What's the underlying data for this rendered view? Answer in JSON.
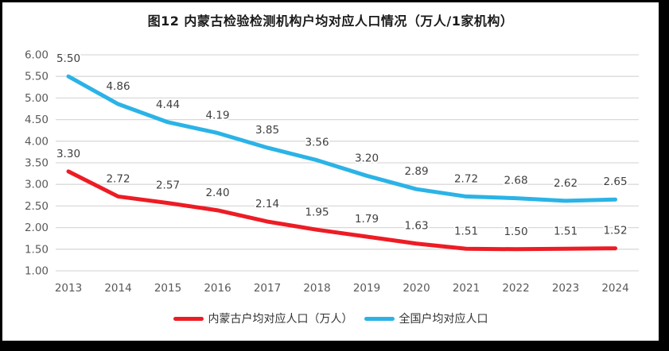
{
  "title": "图12  内蒙古检验检测机构户均对应人口情况（万人/1家机构）",
  "chart_data": {
    "type": "line",
    "title": "图12  内蒙古检验检测机构户均对应人口情况（万人/1家机构）",
    "categories": [
      "2013",
      "2014",
      "2015",
      "2016",
      "2017",
      "2018",
      "2019",
      "2020",
      "2021",
      "2022",
      "2023",
      "2024"
    ],
    "series": [
      {
        "name": "内蒙古户均对应人口（万人）",
        "color": "#ed1c24",
        "values": [
          3.3,
          2.72,
          2.57,
          2.4,
          2.14,
          1.95,
          1.79,
          1.63,
          1.51,
          1.5,
          1.51,
          1.52
        ]
      },
      {
        "name": "全国户均对应人口",
        "color": "#2bb3e6",
        "values": [
          5.5,
          4.86,
          4.44,
          4.19,
          3.85,
          3.56,
          3.2,
          2.89,
          2.72,
          2.68,
          2.62,
          2.65
        ]
      }
    ],
    "ylim": [
      1.0,
      6.0
    ],
    "ytick_step": 0.5,
    "yticks": [
      "6.00",
      "5.50",
      "5.00",
      "4.50",
      "4.00",
      "3.50",
      "3.00",
      "2.50",
      "2.00",
      "1.50",
      "1.00"
    ],
    "grid": true,
    "data_labels": true,
    "legend_position": "bottom"
  },
  "colors": {
    "frame": "#000000",
    "background": "#ffffff",
    "gridline": "#d9d9d9",
    "tick_text": "#595959",
    "data_label_text": "#404040",
    "title_text": "#1a1a1a"
  }
}
